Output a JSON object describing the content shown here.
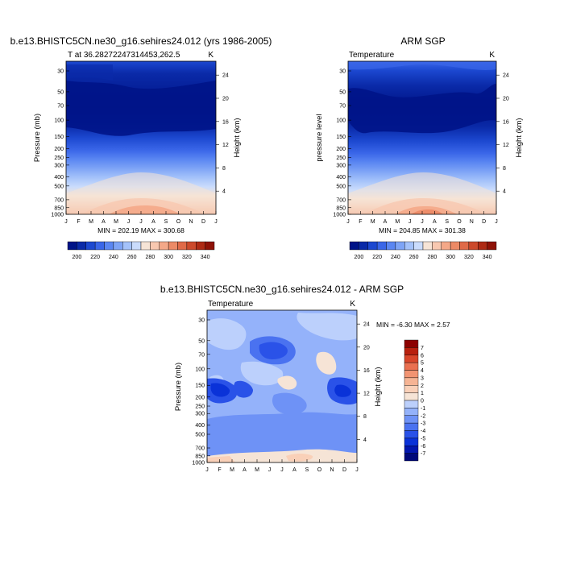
{
  "chart_data": [
    {
      "type": "heatmap",
      "title": "b.e13.BHISTC5CN.ne30_g16.sehires24.012 (yrs 1986-2005)",
      "subtitle_left": "T at 36.28272247314453,262.5",
      "subtitle_right": "K",
      "xlabel": "",
      "ylabel": "Pressure (mb)",
      "ylabel_right": "Height (km)",
      "x_ticks": [
        "J",
        "F",
        "M",
        "A",
        "M",
        "J",
        "J",
        "A",
        "S",
        "O",
        "N",
        "D",
        "J"
      ],
      "y_ticks": [
        "30",
        "50",
        "70",
        "100",
        "150",
        "200",
        "250",
        "300",
        "400",
        "500",
        "700",
        "850",
        "1000"
      ],
      "y_ticks_right": [
        "24",
        "20",
        "16",
        "12",
        "8",
        "4"
      ],
      "minmax": "MIN = 202.19  MAX = 300.68",
      "colorbar": {
        "orientation": "horizontal",
        "labels": [
          "200",
          "220",
          "240",
          "260",
          "280",
          "300",
          "320",
          "340"
        ]
      },
      "field": "model_temperature"
    },
    {
      "type": "heatmap",
      "title": "ARM SGP",
      "subtitle_left": "Temperature",
      "subtitle_right": "K",
      "xlabel": "",
      "ylabel": "pressure level",
      "ylabel_right": "Height (km)",
      "x_ticks": [
        "J",
        "F",
        "M",
        "A",
        "M",
        "J",
        "J",
        "A",
        "S",
        "O",
        "N",
        "D",
        "J"
      ],
      "y_ticks": [
        "30",
        "50",
        "70",
        "100",
        "150",
        "200",
        "250",
        "300",
        "400",
        "500",
        "700",
        "850",
        "1000"
      ],
      "y_ticks_right": [
        "24",
        "20",
        "16",
        "12",
        "8",
        "4"
      ],
      "minmax": "MIN = 204.85  MAX = 301.38",
      "colorbar": {
        "orientation": "horizontal",
        "labels": [
          "200",
          "220",
          "240",
          "260",
          "280",
          "300",
          "320",
          "340"
        ]
      },
      "field": "obs_temperature"
    },
    {
      "type": "heatmap",
      "title": "b.e13.BHISTC5CN.ne30_g16.sehires24.012 - ARM SGP",
      "subtitle_left": "Temperature",
      "subtitle_right": "K",
      "xlabel": "",
      "ylabel": "Pressure (mb)",
      "ylabel_right": "Height (km)",
      "x_ticks": [
        "J",
        "F",
        "M",
        "A",
        "M",
        "J",
        "J",
        "A",
        "S",
        "O",
        "N",
        "D",
        "J"
      ],
      "y_ticks": [
        "30",
        "50",
        "70",
        "100",
        "150",
        "200",
        "250",
        "300",
        "400",
        "500",
        "700",
        "850",
        "1000"
      ],
      "y_ticks_right": [
        "24",
        "20",
        "16",
        "12",
        "8",
        "4"
      ],
      "minmax": "MIN =  -6.30 MAX =   2.57",
      "colorbar": {
        "orientation": "vertical",
        "labels": [
          "7",
          "6",
          "5",
          "4",
          "3",
          "2",
          "1",
          "0",
          "-1",
          "-2",
          "-3",
          "-4",
          "-5",
          "-6",
          "-7"
        ]
      },
      "field": "difference"
    }
  ],
  "colors": {
    "abs": [
      "#001488",
      "#0a2aa8",
      "#1c48d0",
      "#3a66e8",
      "#5a86f2",
      "#7ea4f6",
      "#a4c2fa",
      "#cadcfc",
      "#f6e4d6",
      "#f8c8b0",
      "#f4a888",
      "#ec8a66",
      "#e06a48",
      "#cc4a2c",
      "#ae2a14",
      "#8e1206"
    ],
    "diff": [
      "#00087a",
      "#0216ae",
      "#0a32d8",
      "#2a52e8",
      "#4a72f0",
      "#6e92f6",
      "#94b2fa",
      "#bcd0fc",
      "#f6e4d6",
      "#f9d0b8",
      "#f6b494",
      "#f29472",
      "#ea7050",
      "#d8452a",
      "#b8200e",
      "#8c0000"
    ]
  }
}
